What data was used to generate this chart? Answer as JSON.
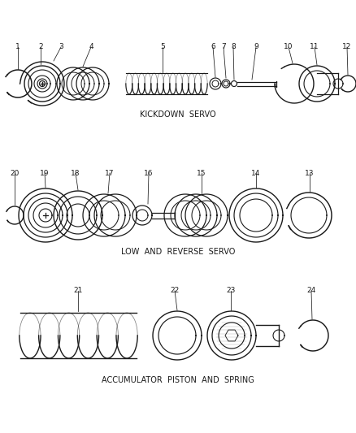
{
  "background_color": "#ffffff",
  "section1_label": "KICKDOWN  SERVO",
  "section2_label": "LOW  AND  REVERSE  SERVO",
  "section3_label": "ACCUMULATOR  PISTON  AND  SPRING",
  "fig_width": 4.38,
  "fig_height": 5.33,
  "dpi": 100,
  "line_color": "#1a1a1a",
  "text_color": "#1a1a1a",
  "label_fontsize": 6.5,
  "section_fontsize": 7.0
}
